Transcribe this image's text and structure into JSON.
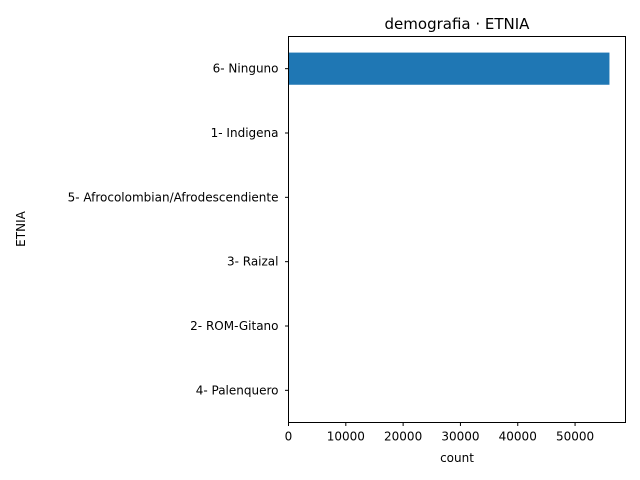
{
  "chart_data": {
    "type": "bar",
    "orientation": "horizontal",
    "title": "demografia · ETNIA",
    "xlabel": "count",
    "ylabel": "ETNIA",
    "categories": [
      "6- Ninguno",
      "1- Indigena",
      "5- Afrocolombian/Afrodescendiente",
      "3- Raizal",
      "2- ROM-Gitano",
      "4- Palenquero"
    ],
    "values": [
      56000,
      40,
      25,
      8,
      5,
      2
    ],
    "xlim": [
      0,
      58800
    ],
    "xticks": [
      0,
      10000,
      20000,
      30000,
      40000,
      50000
    ],
    "xtick_labels": [
      "0",
      "10000",
      "20000",
      "30000",
      "40000",
      "50000"
    ],
    "grid": false,
    "bar_color": "#1f77b4"
  }
}
